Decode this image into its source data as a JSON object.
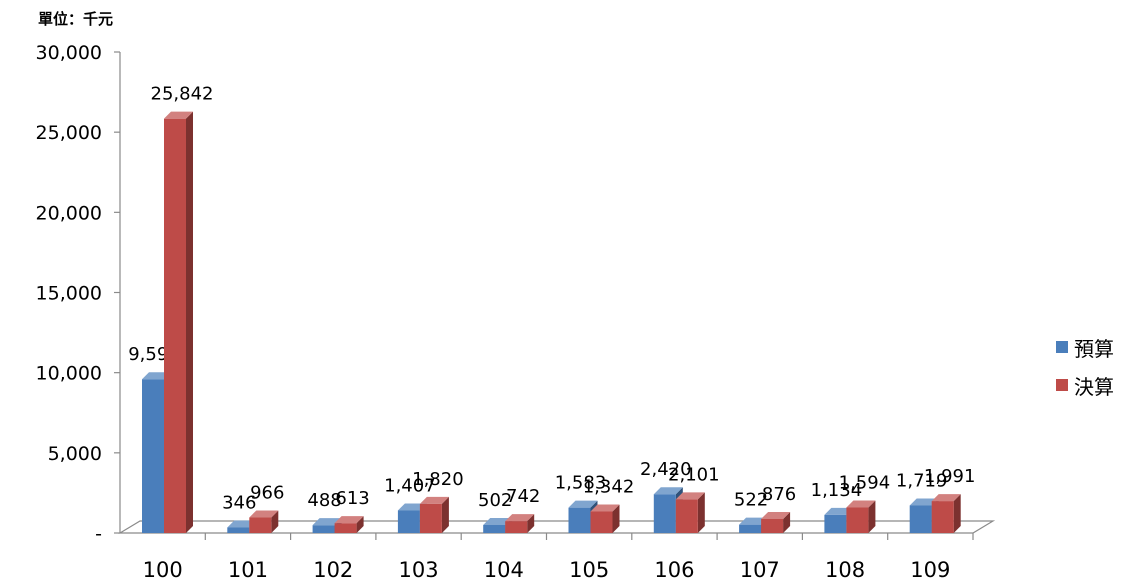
{
  "chart_data": {
    "type": "bar",
    "title": "",
    "unit_label": "單位：千元",
    "xlabel": "",
    "ylabel": "",
    "categories": [
      "100",
      "101",
      "102",
      "103",
      "104",
      "105",
      "106",
      "107",
      "108",
      "109"
    ],
    "series": [
      {
        "name": "預算",
        "color": "#4A7EBB",
        "values": [
          9593,
          346,
          488,
          1407,
          502,
          1583,
          2420,
          522,
          1134,
          1719
        ],
        "labels": [
          "9,593",
          "346",
          "488",
          "1,407",
          "502",
          "1,583",
          "2,420",
          "522",
          "1,134",
          "1,719"
        ]
      },
      {
        "name": "決算",
        "color": "#BE4B48",
        "values": [
          25842,
          966,
          613,
          1820,
          742,
          1342,
          2101,
          876,
          1594,
          1991
        ],
        "labels": [
          "25,842",
          "966",
          "613",
          "1,820",
          "742",
          "1,342",
          "2,101",
          "876",
          "1,594",
          "1,991"
        ]
      }
    ],
    "ylim": [
      0,
      30000
    ],
    "yticks": [
      "-",
      "5,000",
      "10,000",
      "15,000",
      "20,000",
      "25,000",
      "30,000"
    ],
    "legend": "right",
    "grid": false,
    "three_d": true
  }
}
